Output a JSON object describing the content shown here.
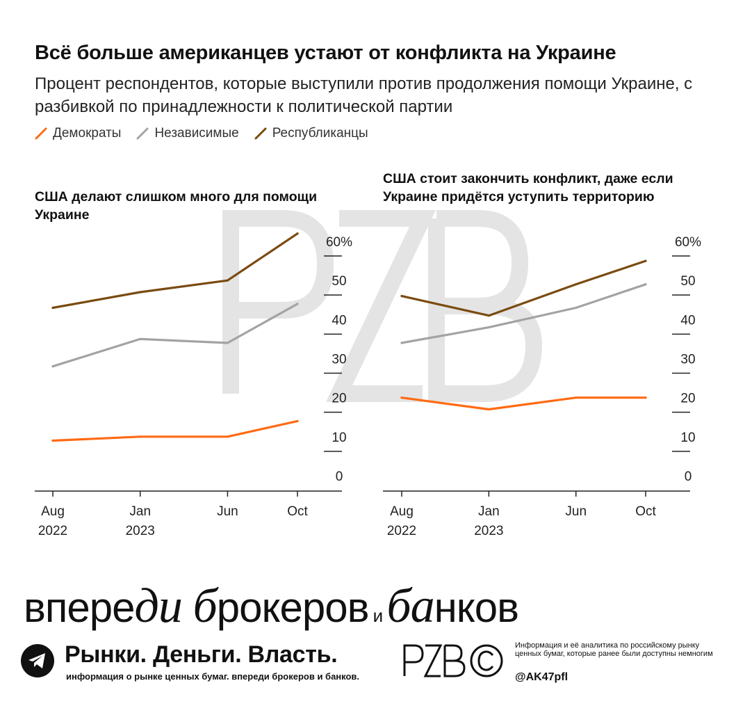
{
  "title": "Всё больше американцев устают от конфликта на Украине",
  "subtitle": "Процент респондентов, которые выступили против продолжения помощи Украине, с разбивкой по принадлежности к политической партии",
  "legend": [
    {
      "label": "Демократы",
      "color": "#ff6a13"
    },
    {
      "label": "Независимые",
      "color": "#a3a3a3"
    },
    {
      "label": "Республиканцы",
      "color": "#7a4b10"
    }
  ],
  "watermark": {
    "text": "PZB"
  },
  "chart_data": [
    {
      "type": "line",
      "title": "США делают слишком много для помощи Украине",
      "x": [
        "Aug\n2022",
        "Jan\n2023",
        "Jun",
        "Oct"
      ],
      "x_positions": [
        0,
        5,
        10,
        14
      ],
      "ylim": [
        0,
        60
      ],
      "yticks": [
        "60%",
        "50",
        "40",
        "30",
        "20",
        "10",
        "0"
      ],
      "series": [
        {
          "name": "Демократы",
          "color": "#ff6a13",
          "values": [
            9,
            10,
            10,
            14
          ]
        },
        {
          "name": "Независимые",
          "color": "#a3a3a3",
          "values": [
            28,
            35,
            34,
            44
          ]
        },
        {
          "name": "Республиканцы",
          "color": "#7a4b10",
          "values": [
            43,
            47,
            50,
            62
          ]
        }
      ]
    },
    {
      "type": "line",
      "title": "США стоит закончить конфликт, даже если Украине придётся уступить территорию",
      "x": [
        "Aug\n2022",
        "Jan\n2023",
        "Jun",
        "Oct"
      ],
      "x_positions": [
        0,
        5,
        10,
        14
      ],
      "ylim": [
        0,
        60
      ],
      "yticks": [
        "60%",
        "50",
        "40",
        "30",
        "20",
        "10",
        "0"
      ],
      "series": [
        {
          "name": "Демократы",
          "color": "#ff6a13",
          "values": [
            20,
            17,
            20,
            20
          ]
        },
        {
          "name": "Независимые",
          "color": "#a3a3a3",
          "values": [
            34,
            38,
            43,
            49
          ]
        },
        {
          "name": "Республиканцы",
          "color": "#7a4b10",
          "values": [
            46,
            41,
            49,
            55
          ]
        }
      ]
    }
  ],
  "footer": {
    "slogan_a": "впере",
    "slogan_b": "ди",
    "slogan_c": " ",
    "slogan_d": "б",
    "slogan_e": "рокеров",
    "slogan_f": " и ",
    "slogan_g": "ба",
    "slogan_h": "нков",
    "brand": "Рынки. Деньги. Власть.",
    "brand_tagline": "информация о рынке ценных бумаг. впереди брокеров и банков.",
    "logo_text": "PZB",
    "info": "Информация и её аналитика по российскому рынку ценных бумаг, которые ранее были доступны немногим",
    "handle": "@AK47pfl"
  }
}
